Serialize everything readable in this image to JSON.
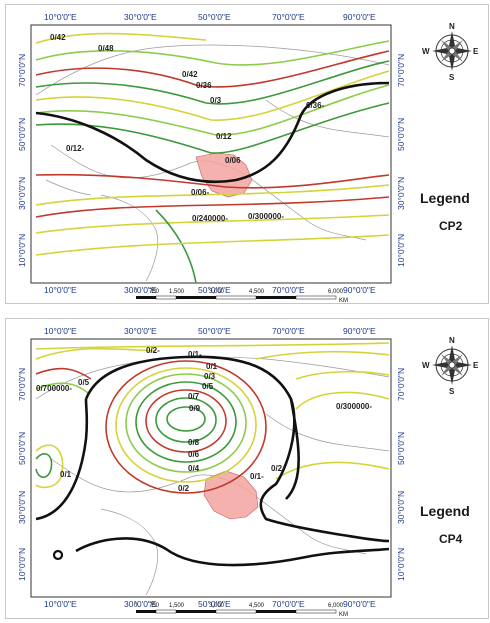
{
  "panels": [
    {
      "legend_word": "Legend",
      "code": "CP2",
      "lon_labels": [
        "10°0'0\"E",
        "30°0'0\"E",
        "50°0'0\"E",
        "70°0'0\"E",
        "90°0'0\"E"
      ],
      "lat_labels": [
        "70°0'0\"N",
        "50°0'0\"N",
        "30°0'0\"N",
        "10°0'0\"N"
      ],
      "contour_labels": [
        "0/42",
        "0/48",
        "0/36",
        "0/42",
        "0/3",
        "0/36-",
        "0/12",
        "0/12-",
        "0/06",
        "0/06-",
        "0/240000-",
        "0/300000-"
      ],
      "scale": {
        "ticks": [
          "0",
          "750",
          "1,500",
          "3,000",
          "4,500",
          "6,000"
        ],
        "unit": "KM"
      }
    },
    {
      "legend_word": "Legend",
      "code": "CP4",
      "lon_labels": [
        "10°0'0\"E",
        "30°0'0\"E",
        "50°0'0\"E",
        "70°0'0\"E",
        "90°0'0\"E"
      ],
      "lat_labels": [
        "70°0'0\"N",
        "50°0'0\"N",
        "30°0'0\"N",
        "10°0'0\"N"
      ],
      "contour_labels": [
        "0/2-",
        "0/1-",
        "0/1",
        "0/3",
        "0/5",
        "0/7",
        "0/9",
        "0/8",
        "0/6",
        "0/4",
        "0/2",
        "0/700000-",
        "0/5",
        "0/1",
        "0/1-",
        "0/2-",
        "0/300000-"
      ],
      "scale": {
        "ticks": [
          "0",
          "750",
          "1,500",
          "3,000",
          "4,500",
          "6,000"
        ],
        "unit": "KM"
      }
    }
  ],
  "compass_letters": [
    "N",
    "E",
    "S",
    "W"
  ],
  "colors": {
    "red": "#c0392b",
    "green": "#3c9a3c",
    "yellow": "#d4d43a",
    "lightgreen": "#8ccc4a",
    "black": "#111111",
    "region": "#f3a3a0",
    "frame_text": "#1f3a8a"
  }
}
